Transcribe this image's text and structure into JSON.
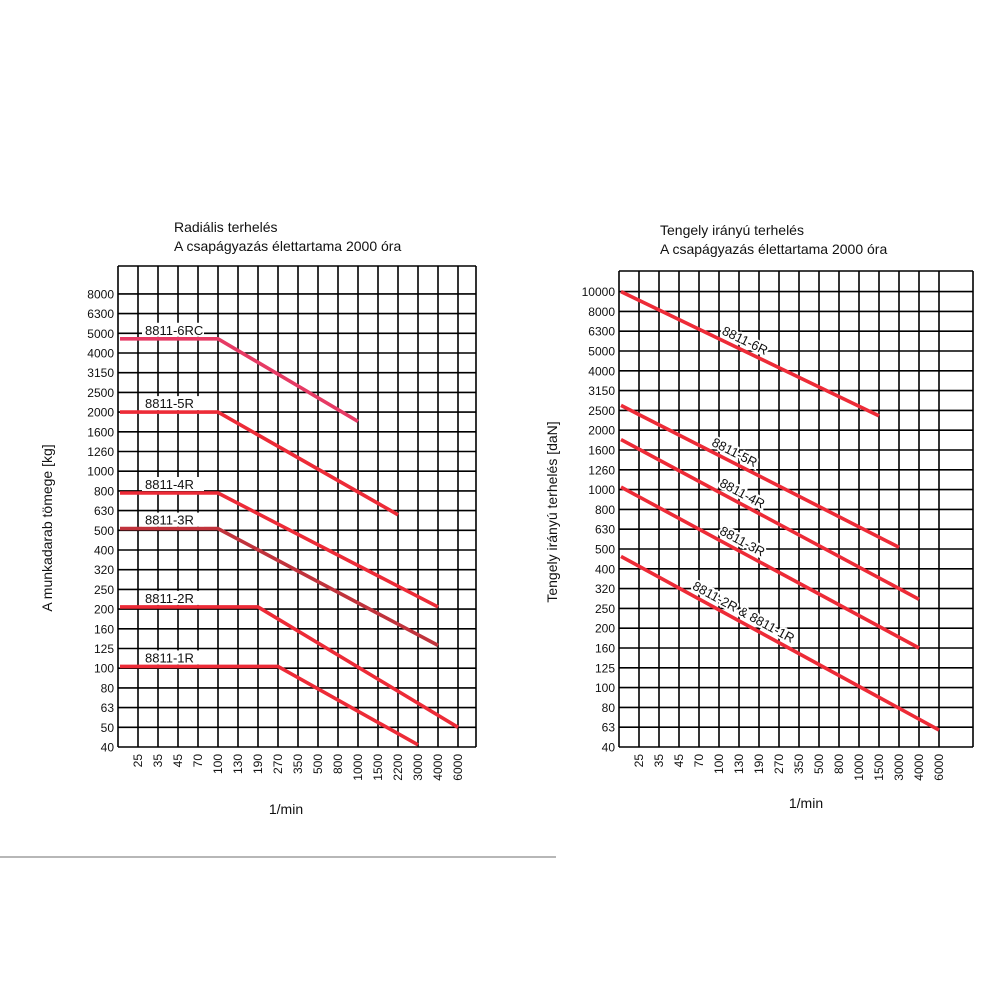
{
  "colors": {
    "primary_line": "#ed2b37",
    "radial_6rc_line": "#e63a64",
    "radial_3r_line": "#c0333c",
    "grid": "#000000"
  },
  "chart_data": [
    {
      "type": "line",
      "title": "Radiális terhelés",
      "subtitle": "A csapágyazás élettartama 2000 óra",
      "xlabel": "1/min",
      "ylabel": "A munkadarab tömege [kg]",
      "x_ticks": [
        "25",
        "35",
        "45",
        "70",
        "100",
        "130",
        "190",
        "270",
        "350",
        "500",
        "800",
        "1000",
        "1500",
        "2200",
        "3000",
        "4000",
        "6000"
      ],
      "y_ticks": [
        "40",
        "50",
        "63",
        "80",
        "100",
        "125",
        "160",
        "200",
        "250",
        "320",
        "400",
        "500",
        "630",
        "800",
        "1000",
        "1260",
        "1600",
        "2000",
        "2500",
        "3150",
        "4000",
        "5000",
        "6300",
        "8000"
      ],
      "grid": true,
      "series": [
        {
          "name": "8811-6RC",
          "x": [
            "25",
            "100",
            "1000"
          ],
          "y": [
            4700,
            4700,
            1800
          ]
        },
        {
          "name": "8811-5R",
          "x": [
            "25",
            "100",
            "2200"
          ],
          "y": [
            2000,
            2000,
            600
          ]
        },
        {
          "name": "8811-4R",
          "x": [
            "25",
            "100",
            "4000"
          ],
          "y": [
            780,
            780,
            205
          ]
        },
        {
          "name": "8811-3R",
          "x": [
            "25",
            "100",
            "4000"
          ],
          "y": [
            510,
            510,
            130
          ]
        },
        {
          "name": "8811-2R",
          "x": [
            "25",
            "190",
            "6000"
          ],
          "y": [
            205,
            205,
            50
          ]
        },
        {
          "name": "8811-1R",
          "x": [
            "25",
            "270",
            "3000"
          ],
          "y": [
            102,
            102,
            41
          ]
        }
      ]
    },
    {
      "type": "line",
      "title": "Tengely irányú terhelés",
      "subtitle": "A csapágyazás élettartama 2000 óra",
      "xlabel": "1/min",
      "ylabel": "Tengely irányú terhelés [daN]",
      "x_ticks": [
        "25",
        "35",
        "45",
        "70",
        "100",
        "130",
        "190",
        "270",
        "350",
        "500",
        "800",
        "1000",
        "1500",
        "3000",
        "4000",
        "6000"
      ],
      "y_ticks": [
        "40",
        "63",
        "80",
        "100",
        "125",
        "160",
        "200",
        "250",
        "320",
        "400",
        "500",
        "630",
        "800",
        "1000",
        "1260",
        "1600",
        "2000",
        "2500",
        "3150",
        "4000",
        "5000",
        "6300",
        "8000",
        "10000"
      ],
      "grid": true,
      "series": [
        {
          "name": "8811-6R",
          "x": [
            "25",
            "1500"
          ],
          "y": [
            10000,
            2350
          ]
        },
        {
          "name": "8811-5R",
          "x": [
            "25",
            "3000"
          ],
          "y": [
            2650,
            510
          ]
        },
        {
          "name": "8811-4R",
          "x": [
            "25",
            "4000"
          ],
          "y": [
            1800,
            280
          ]
        },
        {
          "name": "8811-3R",
          "x": [
            "25",
            "4000"
          ],
          "y": [
            1030,
            160
          ]
        },
        {
          "name": "8811-2R & 8811-1R",
          "x": [
            "25",
            "6000"
          ],
          "y": [
            460,
            59
          ]
        }
      ]
    }
  ]
}
